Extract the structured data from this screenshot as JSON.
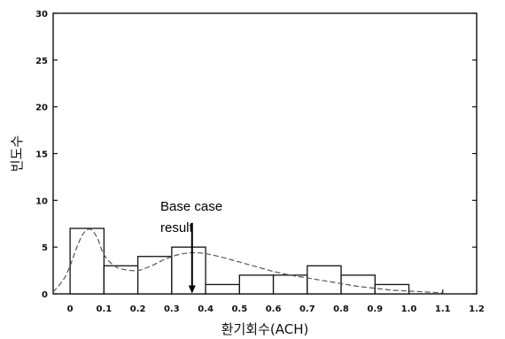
{
  "chart_data": {
    "type": "bar",
    "subtype": "histogram-with-density-curve",
    "title": "",
    "xlabel": "환기회수(ACH)",
    "ylabel": "빈도수",
    "xlim": [
      -0.05,
      1.2
    ],
    "ylim": [
      0,
      30
    ],
    "x_ticks": [
      "0",
      "0.1",
      "0.2",
      "0.3",
      "0.4",
      "0.5",
      "0.6",
      "0.7",
      "0.8",
      "0.9",
      "1.0",
      "1.1",
      "1.2"
    ],
    "x_tick_values": [
      0,
      0.1,
      0.2,
      0.3,
      0.4,
      0.5,
      0.6,
      0.7,
      0.8,
      0.9,
      1.0,
      1.1,
      1.2
    ],
    "y_ticks": [
      "0",
      "5",
      "10",
      "15",
      "20",
      "25",
      "30"
    ],
    "y_tick_values": [
      0,
      5,
      10,
      15,
      20,
      25,
      30
    ],
    "bins": [
      {
        "start": 0.0,
        "end": 0.1,
        "count": 7
      },
      {
        "start": 0.1,
        "end": 0.2,
        "count": 3
      },
      {
        "start": 0.2,
        "end": 0.3,
        "count": 4
      },
      {
        "start": 0.3,
        "end": 0.4,
        "count": 5
      },
      {
        "start": 0.4,
        "end": 0.5,
        "count": 1
      },
      {
        "start": 0.5,
        "end": 0.6,
        "count": 2
      },
      {
        "start": 0.6,
        "end": 0.7,
        "count": 2
      },
      {
        "start": 0.7,
        "end": 0.8,
        "count": 3
      },
      {
        "start": 0.8,
        "end": 0.9,
        "count": 2
      },
      {
        "start": 0.9,
        "end": 1.0,
        "count": 1
      },
      {
        "start": 1.0,
        "end": 1.1,
        "count": 0
      }
    ],
    "density_curve": {
      "style": "dashed",
      "x": [
        -0.05,
        -0.02,
        0.0,
        0.02,
        0.04,
        0.06,
        0.08,
        0.1,
        0.13,
        0.16,
        0.2,
        0.24,
        0.28,
        0.32,
        0.36,
        0.4,
        0.45,
        0.5,
        0.55,
        0.6,
        0.65,
        0.7,
        0.75,
        0.8,
        0.85,
        0.9,
        0.95,
        1.0,
        1.05,
        1.1
      ],
      "y": [
        0.2,
        1.5,
        3.0,
        5.0,
        6.5,
        6.9,
        6.0,
        4.2,
        3.0,
        2.6,
        2.5,
        3.0,
        3.7,
        4.2,
        4.4,
        4.3,
        3.9,
        3.4,
        2.9,
        2.4,
        2.0,
        1.7,
        1.4,
        1.1,
        0.8,
        0.6,
        0.4,
        0.3,
        0.2,
        0.1
      ]
    },
    "annotations": [
      {
        "text": "Base case result",
        "lines": [
          "Base case",
          "result"
        ],
        "arrow_x": 0.36,
        "arrow_y_from": 7.6,
        "arrow_y_to": 0.05
      }
    ],
    "grid": false,
    "legend": "none"
  }
}
